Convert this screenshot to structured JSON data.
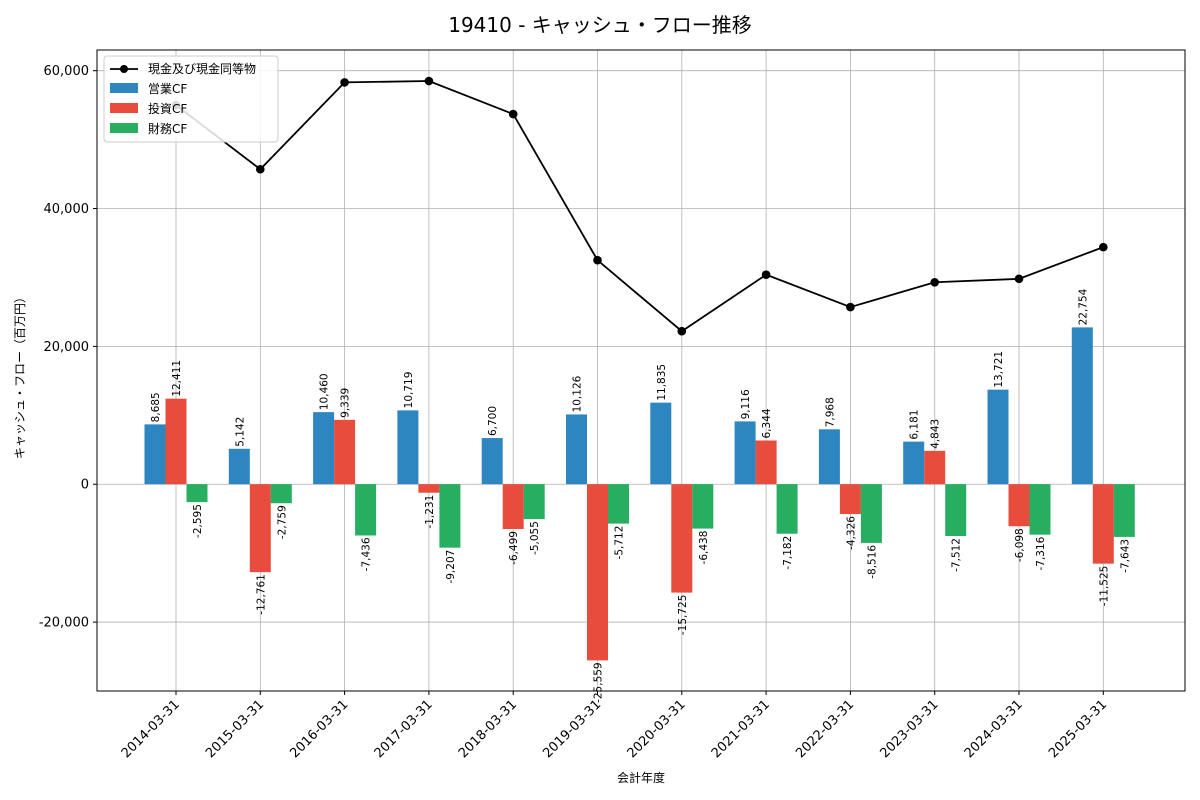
{
  "chart_data": {
    "type": "bar",
    "title": "19410 - キャッシュ・フロー推移",
    "xlabel": "会計年度",
    "ylabel": "キャッシュ・フロー（百万円）",
    "ylim": [
      -30000,
      63000
    ],
    "yticks": [
      -20000,
      0,
      20000,
      40000,
      60000
    ],
    "ytick_labels": [
      "-20,000",
      "0",
      "20,000",
      "40,000",
      "60,000"
    ],
    "grid": true,
    "legend_position": "top-left",
    "categories": [
      "2014-03-31",
      "2015-03-31",
      "2016-03-31",
      "2017-03-31",
      "2018-03-31",
      "2019-03-31",
      "2020-03-31",
      "2021-03-31",
      "2022-03-31",
      "2023-03-31",
      "2024-03-31",
      "2025-03-31"
    ],
    "series": [
      {
        "name": "営業CF",
        "kind": "bar",
        "color": "#2e86c1",
        "values": [
          8685,
          5142,
          10460,
          10719,
          6700,
          10126,
          11835,
          9116,
          7968,
          6181,
          13721,
          22754
        ],
        "labels": [
          "8,685",
          "5,142",
          "10,460",
          "10,719",
          "6,700",
          "10,126",
          "11,835",
          "9,116",
          "7,968",
          "6,181",
          "13,721",
          "22,754"
        ]
      },
      {
        "name": "投資CF",
        "kind": "bar",
        "color": "#e74c3c",
        "values": [
          12411,
          -12761,
          9339,
          -1231,
          -6499,
          -25559,
          -15725,
          6344,
          -4326,
          4843,
          -6098,
          -11525
        ],
        "labels": [
          "12,411",
          "-12,761",
          "9,339",
          "-1,231",
          "-6,499",
          "-25,559",
          "-15,725",
          "6,344",
          "-4,326",
          "4,843",
          "-6,098",
          "-11,525"
        ]
      },
      {
        "name": "財務CF",
        "kind": "bar",
        "color": "#27ae60",
        "values": [
          -2595,
          -2759,
          -7436,
          -9207,
          -5055,
          -5712,
          -6438,
          -7182,
          -8516,
          -7512,
          -7316,
          -7643
        ],
        "labels": [
          "-2,595",
          "-2,759",
          "-7,436",
          "-9,207",
          "-5,055",
          "-5,712",
          "-6,438",
          "-7,182",
          "-8,516",
          "-7,512",
          "-7,316",
          "-7,643"
        ]
      },
      {
        "name": "現金及び現金同等物",
        "kind": "line",
        "color": "#000000",
        "values": [
          55000,
          45700,
          58300,
          58500,
          53700,
          32500,
          22200,
          30400,
          25700,
          29300,
          29800,
          34400
        ]
      }
    ]
  }
}
